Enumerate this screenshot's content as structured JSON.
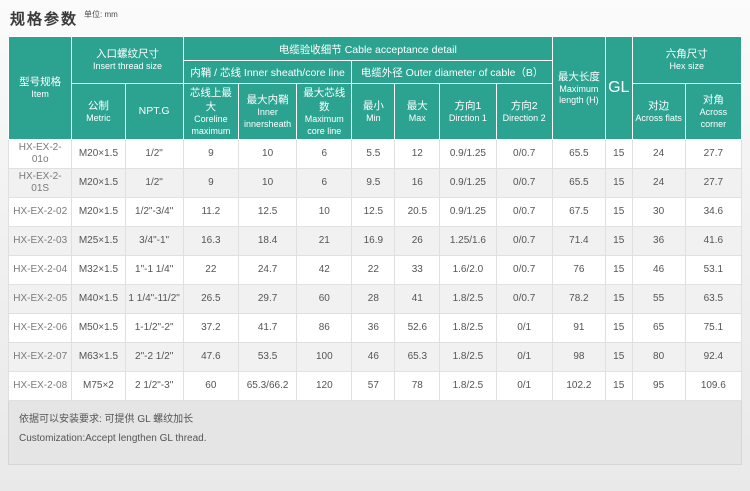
{
  "page": {
    "title": "规格参数",
    "unit": "单位: mm"
  },
  "colors": {
    "header_teal": "#2ba390",
    "row_alt": "#f1f1f1",
    "footer_bg": "#e5e5e5"
  },
  "table": {
    "header": {
      "item": {
        "zh": "型号规格",
        "en": "Item"
      },
      "insert_thread": {
        "zh": "入口螺纹尺寸",
        "en": "Insert thread size"
      },
      "cable_detail": "电缆验收细节 Cable acceptance detail",
      "inner_group": "内鞘 / 芯线 Inner sheath/core line",
      "outer_group": "电缆外径 Outer diameter of cable（B）",
      "max_length": {
        "zh": "最大长度",
        "en": "Maximum length (H)"
      },
      "gl": "GL",
      "hex": {
        "zh": "六角尺寸",
        "en": "Hex size"
      },
      "sub": [
        {
          "zh": "公制",
          "en": "Metric"
        },
        {
          "zh": "NPT.G",
          "en": ""
        },
        {
          "zh": "芯线上最大",
          "en": "Coreline maximum"
        },
        {
          "zh": "最大内鞘",
          "en": "Inner innersheath"
        },
        {
          "zh": "最大芯线数",
          "en": "Maximum core line"
        },
        {
          "zh": "最小",
          "en": "Min"
        },
        {
          "zh": "最大",
          "en": "Max"
        },
        {
          "zh": "方向1",
          "en": "Dirction 1"
        },
        {
          "zh": "方向2",
          "en": "Direction 2"
        },
        {
          "zh": "对边",
          "en": "Across flats"
        },
        {
          "zh": "对角",
          "en": "Across corner"
        }
      ]
    },
    "rows": [
      [
        "HX-EX-2-01o",
        "M20×1.5",
        "1/2\"",
        "9",
        "10",
        "6",
        "5.5",
        "12",
        "0.9/1.25",
        "0/0.7",
        "65.5",
        "15",
        "24",
        "27.7"
      ],
      [
        "HX-EX-2-01S",
        "M20×1.5",
        "1/2\"",
        "9",
        "10",
        "6",
        "9.5",
        "16",
        "0.9/1.25",
        "0/0.7",
        "65.5",
        "15",
        "24",
        "27.7"
      ],
      [
        "HX-EX-2-02",
        "M20×1.5",
        "1/2\"-3/4\"",
        "11.2",
        "12.5",
        "10",
        "12.5",
        "20.5",
        "0.9/1.25",
        "0/0.7",
        "67.5",
        "15",
        "30",
        "34.6"
      ],
      [
        "HX-EX-2-03",
        "M25×1.5",
        "3/4\"-1\"",
        "16.3",
        "18.4",
        "21",
        "16.9",
        "26",
        "1.25/1.6",
        "0/0.7",
        "71.4",
        "15",
        "36",
        "41.6"
      ],
      [
        "HX-EX-2-04",
        "M32×1.5",
        "1\"-1 1/4\"",
        "22",
        "24.7",
        "42",
        "22",
        "33",
        "1.6/2.0",
        "0/0.7",
        "76",
        "15",
        "46",
        "53.1"
      ],
      [
        "HX-EX-2-05",
        "M40×1.5",
        "1 1/4\"-11/2\"",
        "26.5",
        "29.7",
        "60",
        "28",
        "41",
        "1.8/2.5",
        "0/0.7",
        "78.2",
        "15",
        "55",
        "63.5"
      ],
      [
        "HX-EX-2-06",
        "M50×1.5",
        "1-1/2\"-2\"",
        "37.2",
        "41.7",
        "86",
        "36",
        "52.6",
        "1.8/2.5",
        "0/1",
        "91",
        "15",
        "65",
        "75.1"
      ],
      [
        "HX-EX-2-07",
        "M63×1.5",
        "2\"-2 1/2\"",
        "47.6",
        "53.5",
        "100",
        "46",
        "65.3",
        "1.8/2.5",
        "0/1",
        "98",
        "15",
        "80",
        "92.4"
      ],
      [
        "HX-EX-2-08",
        "M75×2",
        "2 1/2\"-3\"",
        "60",
        "65.3/66.2",
        "120",
        "57",
        "78",
        "1.8/2.5",
        "0/1",
        "102.2",
        "15",
        "95",
        "109.6"
      ]
    ]
  },
  "footer": {
    "line_zh": "依据可以安装要求: 可提供 GL 螺纹加长",
    "line_en": "Customization:Accept lengthen GL thread."
  }
}
